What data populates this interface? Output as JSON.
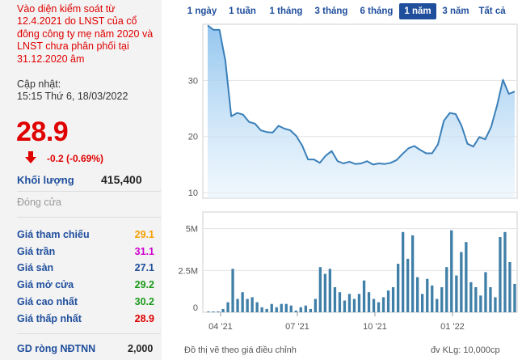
{
  "notice": "Vào diện kiểm soát từ 12.4.2021 do LNST của cổ đông công ty mẹ năm 2020 và LNST chưa phân phối tại 31.12.2020 âm",
  "update_label": "Cập nhật:",
  "update_time": "15:15 Thứ 6, 18/03/2022",
  "price": "28.9",
  "change": "-0.2 (-0.69%)",
  "volume_label": "Khối lượng",
  "volume_value": "415,400",
  "close_label": "Đóng cửa",
  "stats": [
    {
      "label": "Giá tham chiếu",
      "value": "29.1",
      "color": "#f5a000"
    },
    {
      "label": "Giá trần",
      "value": "31.1",
      "color": "#d000d0"
    },
    {
      "label": "Giá sàn",
      "value": "27.1",
      "color": "#1f4e9c"
    },
    {
      "label": "Giá mở cửa",
      "value": "29.2",
      "color": "#1a9a1a"
    },
    {
      "label": "Giá cao nhất",
      "value": "30.2",
      "color": "#1a9a1a"
    },
    {
      "label": "Giá thấp nhất",
      "value": "28.9",
      "color": "#e00000"
    }
  ],
  "gd_label": "GD ròng NĐTNN",
  "gd_value": "2,000",
  "tabs": [
    "1 ngày",
    "1 tuần",
    "1 tháng",
    "3 tháng",
    "6 tháng",
    "1 năm",
    "3 năm",
    "Tất cả"
  ],
  "active_tab": "1 năm",
  "footer_left": "Đồ thị vẽ theo giá điều chỉnh",
  "footer_right": "đv KLg: 10,000cp",
  "chart_data": [
    {
      "type": "area",
      "y_ticks": [
        "30",
        "20",
        "10"
      ],
      "ylim": [
        9,
        40
      ],
      "values": [
        39.8,
        39.0,
        39.0,
        33.5,
        23.6,
        24.2,
        23.9,
        22.6,
        22.3,
        21.1,
        20.8,
        20.7,
        21.9,
        21.4,
        21.1,
        20.1,
        18.4,
        15.9,
        15.9,
        15.3,
        16.6,
        17.4,
        15.6,
        15.2,
        15.5,
        15.1,
        15.2,
        15.6,
        15.0,
        15.2,
        15.1,
        15.3,
        15.8,
        16.9,
        17.9,
        18.3,
        17.6,
        17.0,
        17.0,
        18.6,
        22.8,
        24.2,
        24.0,
        21.9,
        18.7,
        18.2,
        19.9,
        19.5,
        21.7,
        25.5,
        30.1,
        27.6,
        28.0
      ]
    },
    {
      "type": "bar",
      "y_ticks": [
        "5M",
        "2.5M",
        "0"
      ],
      "ylim": [
        0,
        6000000
      ],
      "x_ticks": [
        "04 '21",
        "07 '21",
        "10 '21",
        "01 '22"
      ],
      "values": [
        0.05,
        0.05,
        0.05,
        0.2,
        0.6,
        2.6,
        0.8,
        1.2,
        0.8,
        0.9,
        0.6,
        0.3,
        0.2,
        0.5,
        0.3,
        0.5,
        0.5,
        0.4,
        0.1,
        0.3,
        0.4,
        0.2,
        0.8,
        2.7,
        2.3,
        2.6,
        1.5,
        1.2,
        0.7,
        1.1,
        0.8,
        1.1,
        1.9,
        1.2,
        0.8,
        0.6,
        0.9,
        1.3,
        1.5,
        2.9,
        4.8,
        3.2,
        4.6,
        2.1,
        1.1,
        2.0,
        1.6,
        0.8,
        1.5,
        2.7,
        4.9,
        2.2,
        3.6,
        4.2,
        1.8,
        1.5,
        1.0,
        2.4,
        1.5,
        0.9,
        4.5,
        4.8,
        3.0,
        1.7
      ]
    }
  ]
}
